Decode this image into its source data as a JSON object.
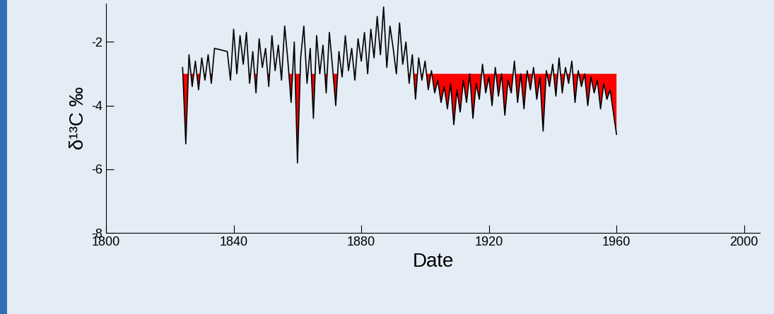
{
  "chart_data": {
    "type": "line",
    "x_label": "Date",
    "y_label": "δ¹³C ‰",
    "xlim": [
      1800,
      2005
    ],
    "xticks": [
      1800,
      1840,
      1880,
      1920,
      1960,
      2000
    ],
    "ylim": [
      -8,
      -0.8
    ],
    "yticks": [
      -2,
      -4,
      -6,
      -8
    ],
    "grid": false,
    "series": [
      {
        "name": "δ¹³C",
        "color": "#000000",
        "fill_color": "#ff0000",
        "reference": -3,
        "x": [
          1824,
          1825,
          1826,
          1827,
          1828,
          1829,
          1830,
          1831,
          1832,
          1833,
          1834,
          1838,
          1839,
          1840,
          1841,
          1842,
          1843,
          1844,
          1845,
          1846,
          1847,
          1848,
          1849,
          1850,
          1851,
          1852,
          1853,
          1854,
          1855,
          1856,
          1857,
          1858,
          1859,
          1860,
          1861,
          1862,
          1863,
          1864,
          1865,
          1866,
          1867,
          1868,
          1869,
          1870,
          1871,
          1872,
          1873,
          1874,
          1875,
          1876,
          1877,
          1878,
          1879,
          1880,
          1881,
          1882,
          1883,
          1884,
          1885,
          1886,
          1887,
          1888,
          1889,
          1890,
          1891,
          1892,
          1893,
          1894,
          1895,
          1896,
          1897,
          1898,
          1899,
          1900,
          1901,
          1902,
          1903,
          1904,
          1905,
          1906,
          1907,
          1908,
          1909,
          1910,
          1911,
          1912,
          1913,
          1914,
          1915,
          1916,
          1917,
          1918,
          1919,
          1920,
          1921,
          1922,
          1923,
          1924,
          1925,
          1926,
          1927,
          1928,
          1929,
          1930,
          1931,
          1932,
          1933,
          1934,
          1935,
          1936,
          1937,
          1938,
          1939,
          1940,
          1941,
          1942,
          1943,
          1944,
          1945,
          1946,
          1947,
          1948,
          1949,
          1950,
          1951,
          1952,
          1953,
          1954,
          1955,
          1956,
          1957,
          1958,
          1959,
          1960
        ],
        "values": [
          -2.8,
          -5.2,
          -2.4,
          -3.4,
          -2.6,
          -3.5,
          -2.5,
          -3.2,
          -2.4,
          -3.3,
          -2.2,
          -2.3,
          -3.2,
          -1.6,
          -3.0,
          -1.8,
          -2.7,
          -1.7,
          -3.3,
          -2.3,
          -3.6,
          -1.9,
          -2.8,
          -2.2,
          -3.4,
          -1.8,
          -2.9,
          -2.1,
          -3.2,
          -1.5,
          -2.6,
          -3.9,
          -2.0,
          -5.8,
          -2.5,
          -1.5,
          -3.3,
          -2.2,
          -4.4,
          -1.8,
          -3.0,
          -2.1,
          -3.6,
          -1.7,
          -2.8,
          -4.0,
          -2.3,
          -3.1,
          -1.8,
          -2.9,
          -2.2,
          -3.2,
          -1.9,
          -2.6,
          -1.7,
          -3.0,
          -1.6,
          -2.5,
          -1.2,
          -2.4,
          -0.9,
          -2.8,
          -1.5,
          -2.2,
          -3.0,
          -1.4,
          -2.7,
          -2.0,
          -3.3,
          -2.4,
          -3.8,
          -2.5,
          -3.2,
          -2.6,
          -3.5,
          -2.9,
          -3.6,
          -3.2,
          -3.9,
          -3.4,
          -4.1,
          -3.3,
          -4.6,
          -3.5,
          -4.2,
          -3.2,
          -3.9,
          -3.0,
          -4.4,
          -3.3,
          -3.8,
          -2.7,
          -3.6,
          -3.1,
          -4.0,
          -2.8,
          -3.7,
          -3.0,
          -4.3,
          -3.2,
          -3.6,
          -2.6,
          -3.9,
          -3.0,
          -4.1,
          -2.9,
          -3.5,
          -2.8,
          -3.8,
          -3.1,
          -4.8,
          -2.9,
          -3.4,
          -2.7,
          -3.7,
          -2.5,
          -3.6,
          -2.8,
          -3.3,
          -2.6,
          -3.9,
          -2.9,
          -3.4,
          -3.0,
          -4.0,
          -3.1,
          -3.6,
          -3.2,
          -4.1,
          -3.3,
          -3.8,
          -3.5,
          -4.2,
          -4.9
        ]
      }
    ]
  }
}
